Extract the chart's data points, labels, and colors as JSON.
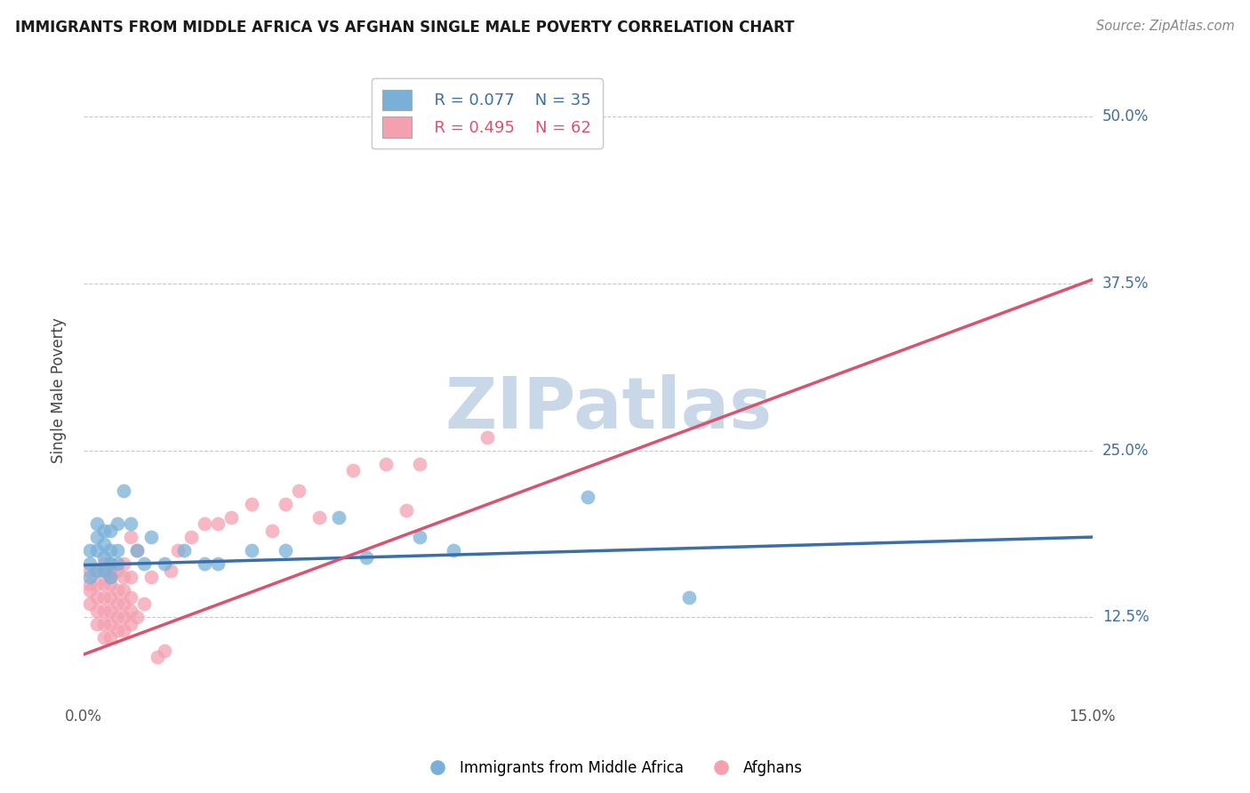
{
  "title": "IMMIGRANTS FROM MIDDLE AFRICA VS AFGHAN SINGLE MALE POVERTY CORRELATION CHART",
  "source": "Source: ZipAtlas.com",
  "ylabel": "Single Male Poverty",
  "xlim": [
    0.0,
    0.15
  ],
  "ylim": [
    0.06,
    0.53
  ],
  "blue_color": "#7ab0d8",
  "pink_color": "#f4a0b0",
  "blue_line_color": "#3a6fa8",
  "pink_line_color": "#d9536e",
  "grid_color": "#c8c8c8",
  "watermark_color": "#c8d8e8",
  "legend_R1": "R = 0.077",
  "legend_N1": "N = 35",
  "legend_R2": "R = 0.495",
  "legend_N2": "N = 62",
  "blue_points_x": [
    0.001,
    0.001,
    0.001,
    0.002,
    0.002,
    0.002,
    0.002,
    0.003,
    0.003,
    0.003,
    0.003,
    0.004,
    0.004,
    0.004,
    0.004,
    0.005,
    0.005,
    0.005,
    0.006,
    0.007,
    0.008,
    0.009,
    0.01,
    0.012,
    0.015,
    0.018,
    0.02,
    0.025,
    0.03,
    0.038,
    0.042,
    0.05,
    0.055,
    0.075,
    0.09
  ],
  "blue_points_y": [
    0.155,
    0.165,
    0.175,
    0.16,
    0.175,
    0.185,
    0.195,
    0.16,
    0.17,
    0.18,
    0.19,
    0.155,
    0.165,
    0.175,
    0.19,
    0.165,
    0.175,
    0.195,
    0.22,
    0.195,
    0.175,
    0.165,
    0.185,
    0.165,
    0.175,
    0.165,
    0.165,
    0.175,
    0.175,
    0.2,
    0.17,
    0.185,
    0.175,
    0.215,
    0.14
  ],
  "pink_points_x": [
    0.001,
    0.001,
    0.001,
    0.001,
    0.002,
    0.002,
    0.002,
    0.002,
    0.002,
    0.003,
    0.003,
    0.003,
    0.003,
    0.003,
    0.003,
    0.003,
    0.004,
    0.004,
    0.004,
    0.004,
    0.004,
    0.004,
    0.004,
    0.004,
    0.005,
    0.005,
    0.005,
    0.005,
    0.005,
    0.006,
    0.006,
    0.006,
    0.006,
    0.006,
    0.006,
    0.007,
    0.007,
    0.007,
    0.007,
    0.007,
    0.008,
    0.008,
    0.009,
    0.01,
    0.011,
    0.012,
    0.013,
    0.014,
    0.016,
    0.018,
    0.02,
    0.022,
    0.025,
    0.028,
    0.03,
    0.032,
    0.035,
    0.04,
    0.045,
    0.048,
    0.05,
    0.06
  ],
  "pink_points_y": [
    0.135,
    0.145,
    0.15,
    0.16,
    0.12,
    0.13,
    0.14,
    0.15,
    0.16,
    0.11,
    0.12,
    0.13,
    0.14,
    0.15,
    0.16,
    0.165,
    0.11,
    0.12,
    0.13,
    0.14,
    0.15,
    0.155,
    0.16,
    0.165,
    0.115,
    0.125,
    0.135,
    0.145,
    0.16,
    0.115,
    0.125,
    0.135,
    0.145,
    0.155,
    0.165,
    0.12,
    0.13,
    0.14,
    0.155,
    0.185,
    0.125,
    0.175,
    0.135,
    0.155,
    0.095,
    0.1,
    0.16,
    0.175,
    0.185,
    0.195,
    0.195,
    0.2,
    0.21,
    0.19,
    0.21,
    0.22,
    0.2,
    0.235,
    0.24,
    0.205,
    0.24,
    0.26
  ],
  "pink_line_x0": 0.0,
  "pink_line_y0": 0.097,
  "pink_line_x1": 0.15,
  "pink_line_y1": 0.378,
  "blue_line_x0": 0.0,
  "blue_line_y0": 0.164,
  "blue_line_x1": 0.15,
  "blue_line_y1": 0.185
}
